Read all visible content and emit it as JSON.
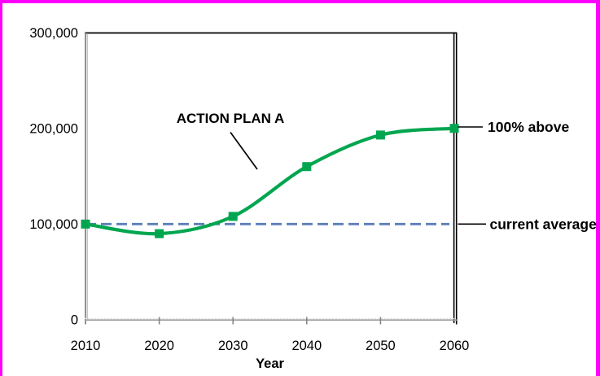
{
  "window": {
    "frame_border_color": "#FF00FF",
    "background_color": "#FFFFFF"
  },
  "chart_data": {
    "type": "line",
    "title": "",
    "xlabel": "Year",
    "ylabel": "",
    "x": [
      2010,
      2020,
      2030,
      2040,
      2050,
      2060
    ],
    "series": [
      {
        "name": "ACTION PLAN A",
        "values": [
          100000,
          90000,
          108000,
          160000,
          193000,
          200000
        ],
        "color": "#00A64F",
        "marker": "square",
        "smooth": true
      }
    ],
    "reference_line": {
      "label": "current average",
      "value": 100000,
      "color": "#5B7FB8",
      "style": "dashed"
    },
    "xlim": [
      2010,
      2060
    ],
    "ylim": [
      0,
      300000
    ],
    "yticks": [
      0,
      100000,
      200000,
      300000
    ],
    "ytick_labels": [
      "0",
      "100,000",
      "200,000",
      "300,000"
    ],
    "xtick_labels": [
      "2010",
      "2020",
      "2030",
      "2040",
      "2050",
      "2060"
    ],
    "grid": false,
    "legend": "none",
    "annotations": [
      {
        "text": "ACTION PLAN A",
        "bold": true,
        "points_to": "rising curve near 2033"
      },
      {
        "text": "100% above",
        "bold": true,
        "points_to": "2060 end point at 200,000"
      },
      {
        "text": "current average",
        "bold": true,
        "points_to": "dashed line at 100,000"
      }
    ]
  }
}
